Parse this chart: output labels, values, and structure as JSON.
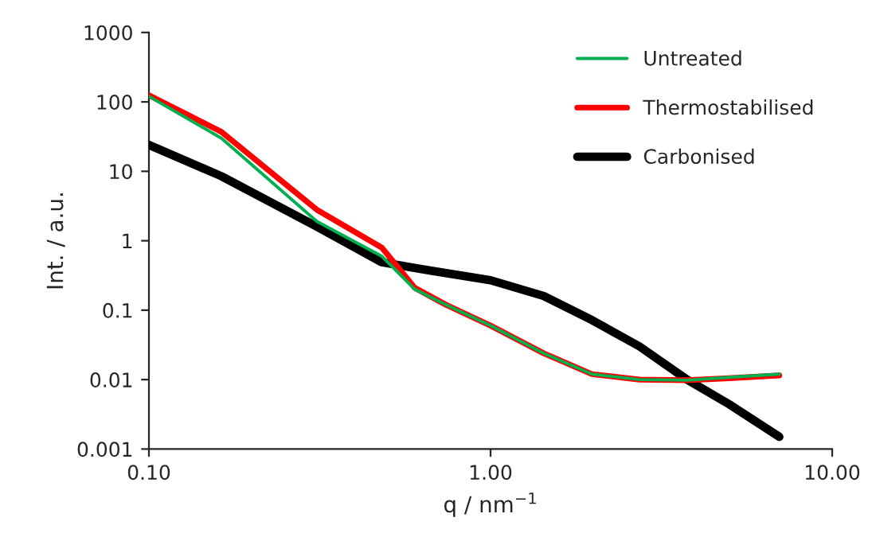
{
  "chart_data": {
    "type": "line",
    "xlabel": "q / nm$^{−1}$",
    "ylabel": "Int. / a.u.",
    "log": "xy",
    "grid": false,
    "legend": "top right",
    "xlim": [
      0.1,
      10
    ],
    "xticks": [
      {
        "value": 0.1,
        "label": "0.10"
      },
      {
        "value": 1,
        "label": "1.00"
      },
      {
        "value": 10,
        "label": "10.00"
      }
    ],
    "ylim": [
      0.001,
      1000
    ],
    "yticks": [
      {
        "value": 0.001,
        "label": "0.001"
      },
      {
        "value": 0.01,
        "label": "0.01"
      },
      {
        "value": 0.1,
        "label": "0.1"
      },
      1,
      10,
      100,
      1000
    ],
    "series": [
      {
        "name": "Untreated",
        "color": "#00b050",
        "x": [
          0.1,
          0.163,
          0.31,
          0.48,
          0.6,
          0.74,
          1.0,
          1.43,
          1.98,
          2.73,
          3.76,
          5.0,
          7.0
        ],
        "values": [
          120,
          30,
          1.9,
          0.6,
          0.2,
          0.12,
          0.06,
          0.024,
          0.012,
          0.01,
          0.0098,
          0.0108,
          0.012
        ]
      },
      {
        "name": "Thermostabilised",
        "color": "#ff0000",
        "x": [
          0.1,
          0.163,
          0.31,
          0.48,
          0.6,
          0.74,
          1.0,
          1.43,
          1.98,
          2.73,
          3.76,
          5.0,
          7.0
        ],
        "values": [
          125,
          37,
          2.8,
          0.8,
          0.21,
          0.12,
          0.06,
          0.024,
          0.012,
          0.01,
          0.0098,
          0.0105,
          0.0115
        ]
      },
      {
        "name": "Carbonised",
        "color": "#000000",
        "x": [
          0.1,
          0.163,
          0.31,
          0.48,
          0.67,
          1.0,
          1.43,
          1.98,
          2.73,
          3.76,
          5.0,
          7.0
        ],
        "values": [
          24,
          8.5,
          1.6,
          0.49,
          0.37,
          0.27,
          0.16,
          0.072,
          0.03,
          0.01,
          0.0044,
          0.0015
        ]
      }
    ]
  }
}
